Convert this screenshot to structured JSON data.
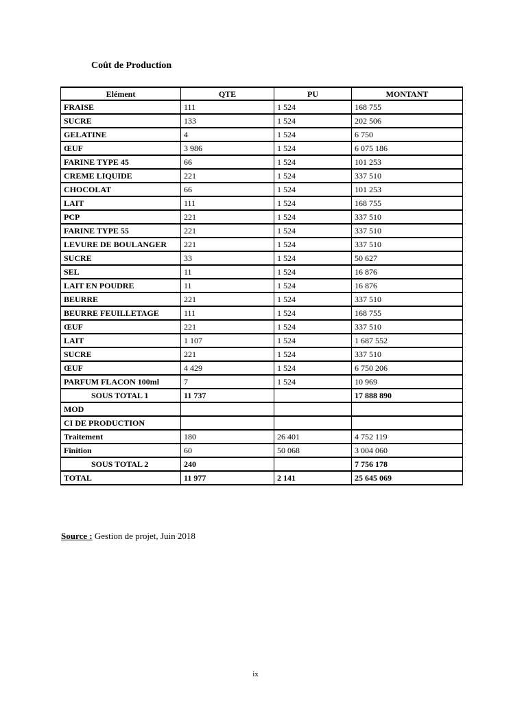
{
  "page": {
    "title": "Coût de Production",
    "source_label": "Source :",
    "source_text": " Gestion de projet, Juin 2018",
    "page_number": "ix"
  },
  "table": {
    "headers": [
      "Elément",
      "QTE",
      "PU",
      "MONTANT"
    ],
    "rows": [
      {
        "element": "FRAISE",
        "qte": "111",
        "pu": "1 524",
        "montant": "168 755",
        "style": "normal"
      },
      {
        "element": "SUCRE",
        "qte": "133",
        "pu": "1 524",
        "montant": "202 506",
        "style": "normal"
      },
      {
        "element": "GELATINE",
        "qte": "4",
        "pu": "1 524",
        "montant": "6 750",
        "style": "normal"
      },
      {
        "element": "ŒUF",
        "qte": "3 986",
        "pu": "1 524",
        "montant": "6 075 186",
        "style": "normal"
      },
      {
        "element": "FARINE TYPE 45",
        "qte": "66",
        "pu": "1 524",
        "montant": "101 253",
        "style": "normal"
      },
      {
        "element": "CREME LIQUIDE",
        "qte": "221",
        "pu": "1 524",
        "montant": "337 510",
        "style": "normal"
      },
      {
        "element": "CHOCOLAT",
        "qte": "66",
        "pu": "1 524",
        "montant": "101 253",
        "style": "normal"
      },
      {
        "element": "LAIT",
        "qte": "111",
        "pu": "1 524",
        "montant": "168 755",
        "style": "normal"
      },
      {
        "element": "PCP",
        "qte": "221",
        "pu": "1 524",
        "montant": "337 510",
        "style": "normal"
      },
      {
        "element": "FARINE TYPE 55",
        "qte": "221",
        "pu": "1 524",
        "montant": "337 510",
        "style": "normal"
      },
      {
        "element": "LEVURE DE BOULANGER",
        "qte": "221",
        "pu": "1 524",
        "montant": "337 510",
        "style": "normal"
      },
      {
        "element": "SUCRE",
        "qte": "33",
        "pu": "1 524",
        "montant": "50 627",
        "style": "normal"
      },
      {
        "element": "SEL",
        "qte": "11",
        "pu": "1 524",
        "montant": "16 876",
        "style": "normal"
      },
      {
        "element": "LAIT EN POUDRE",
        "qte": "11",
        "pu": "1 524",
        "montant": "16 876",
        "style": "normal"
      },
      {
        "element": "BEURRE",
        "qte": "221",
        "pu": "1 524",
        "montant": "337 510",
        "style": "normal"
      },
      {
        "element": "BEURRE FEUILLETAGE",
        "qte": "111",
        "pu": "1 524",
        "montant": "168 755",
        "style": "normal"
      },
      {
        "element": "ŒUF",
        "qte": "221",
        "pu": "1 524",
        "montant": "337 510",
        "style": "normal"
      },
      {
        "element": "LAIT",
        "qte": "1 107",
        "pu": "1 524",
        "montant": "1 687 552",
        "style": "normal"
      },
      {
        "element": "SUCRE",
        "qte": "221",
        "pu": "1 524",
        "montant": "337 510",
        "style": "normal"
      },
      {
        "element": "ŒUF",
        "qte": "4 429",
        "pu": "1 524",
        "montant": "6 750 206",
        "style": "normal"
      },
      {
        "element": "PARFUM FLACON 100ml",
        "qte": "7",
        "pu": "1 524",
        "montant": "10 969",
        "style": "normal"
      },
      {
        "element": "SOUS TOTAL 1",
        "qte": "11 737",
        "pu": "",
        "montant": "17 888 890",
        "style": "subtotal"
      },
      {
        "element": "MOD",
        "qte": "",
        "pu": "",
        "montant": "",
        "style": "normal"
      },
      {
        "element": "CI DE PRODUCTION",
        "qte": "",
        "pu": "",
        "montant": "",
        "style": "normal"
      },
      {
        "element": "Traitement",
        "qte": "180",
        "pu": "26 401",
        "montant": "4 752 119",
        "style": "normal"
      },
      {
        "element": "Finition",
        "qte": "60",
        "pu": "50 068",
        "montant": "3 004 060",
        "style": "normal"
      },
      {
        "element": "SOUS TOTAL 2",
        "qte": "240",
        "pu": "",
        "montant": "7 756 178",
        "style": "subtotal"
      },
      {
        "element": "TOTAL",
        "qte": "11 977",
        "pu": "2 141",
        "montant": "25 645 069",
        "style": "total"
      }
    ]
  }
}
